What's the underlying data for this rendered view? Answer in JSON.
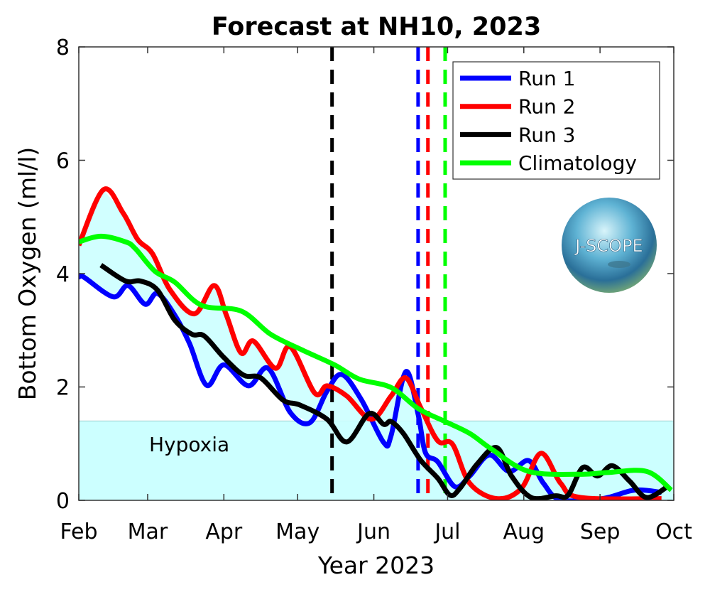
{
  "chart_data": {
    "type": "line",
    "title": "Forecast at NH10, 2023",
    "xlabel": "Year 2023",
    "ylabel": "Bottom Oxygen (ml/l)",
    "xlim": [
      "2023-02-01",
      "2023-10-01"
    ],
    "ylim": [
      0,
      8
    ],
    "x_ticks": [
      {
        "date": "2023-02-01",
        "label": "Feb"
      },
      {
        "date": "2023-03-01",
        "label": "Mar"
      },
      {
        "date": "2023-04-01",
        "label": "Apr"
      },
      {
        "date": "2023-05-01",
        "label": "May"
      },
      {
        "date": "2023-06-01",
        "label": "Jun"
      },
      {
        "date": "2023-07-01",
        "label": "Jul"
      },
      {
        "date": "2023-08-01",
        "label": "Aug"
      },
      {
        "date": "2023-09-01",
        "label": "Sep"
      },
      {
        "date": "2023-10-01",
        "label": "Oct"
      }
    ],
    "y_ticks": [
      0,
      2,
      4,
      6,
      8
    ],
    "grid": false,
    "legend_position": "top-right",
    "hypoxia": {
      "label": "Hypoxia",
      "ymin": 0,
      "ymax": 1.4,
      "color": "#ccffff"
    },
    "envelope_fill_color": "#ccffff",
    "forecast_start": {
      "date": "2023-05-15",
      "color": "#000000"
    },
    "series": [
      {
        "name": "Run 1",
        "color": "#0000ff",
        "hypoxia_onset": "2023-06-19",
        "points": [
          [
            "2023-02-01",
            3.94
          ],
          [
            "2023-02-03",
            3.94
          ],
          [
            "2023-02-15",
            3.59
          ],
          [
            "2023-02-21",
            3.79
          ],
          [
            "2023-02-28",
            3.46
          ],
          [
            "2023-03-05",
            3.65
          ],
          [
            "2023-03-12",
            3.27
          ],
          [
            "2023-03-18",
            2.77
          ],
          [
            "2023-03-25",
            2.03
          ],
          [
            "2023-04-01",
            2.39
          ],
          [
            "2023-04-11",
            2.02
          ],
          [
            "2023-04-19",
            2.33
          ],
          [
            "2023-04-28",
            1.55
          ],
          [
            "2023-05-06",
            1.37
          ],
          [
            "2023-05-13",
            1.93
          ],
          [
            "2023-05-19",
            2.22
          ],
          [
            "2023-05-27",
            1.77
          ],
          [
            "2023-06-05",
            1.02
          ],
          [
            "2023-06-08",
            1.14
          ],
          [
            "2023-06-14",
            2.27
          ],
          [
            "2023-06-19",
            1.52
          ],
          [
            "2023-06-22",
            0.84
          ],
          [
            "2023-06-27",
            0.68
          ],
          [
            "2023-07-04",
            0.24
          ],
          [
            "2023-07-10",
            0.43
          ],
          [
            "2023-07-18",
            0.8
          ],
          [
            "2023-07-26",
            0.51
          ],
          [
            "2023-08-03",
            0.7
          ],
          [
            "2023-08-09",
            0.3
          ],
          [
            "2023-08-16",
            0.01
          ],
          [
            "2023-09-02",
            0.03
          ],
          [
            "2023-09-15",
            0.18
          ],
          [
            "2023-09-26",
            0.14
          ]
        ]
      },
      {
        "name": "Run 2",
        "color": "#ff0000",
        "hypoxia_onset": "2023-06-23",
        "points": [
          [
            "2023-02-01",
            4.5
          ],
          [
            "2023-02-11",
            5.48
          ],
          [
            "2023-02-19",
            5.07
          ],
          [
            "2023-02-25",
            4.6
          ],
          [
            "2023-03-03",
            4.35
          ],
          [
            "2023-03-10",
            3.72
          ],
          [
            "2023-03-20",
            3.29
          ],
          [
            "2023-03-28",
            3.79
          ],
          [
            "2023-04-02",
            3.27
          ],
          [
            "2023-04-08",
            2.6
          ],
          [
            "2023-04-13",
            2.81
          ],
          [
            "2023-04-22",
            2.33
          ],
          [
            "2023-04-28",
            2.71
          ],
          [
            "2023-05-08",
            1.89
          ],
          [
            "2023-05-13",
            2.02
          ],
          [
            "2023-05-21",
            1.84
          ],
          [
            "2023-05-31",
            1.43
          ],
          [
            "2023-06-08",
            1.84
          ],
          [
            "2023-06-14",
            2.16
          ],
          [
            "2023-06-20",
            1.64
          ],
          [
            "2023-06-27",
            1.05
          ],
          [
            "2023-07-03",
            0.99
          ],
          [
            "2023-07-10",
            0.3
          ],
          [
            "2023-07-21",
            0.03
          ],
          [
            "2023-07-31",
            0.21
          ],
          [
            "2023-08-08",
            0.83
          ],
          [
            "2023-08-16",
            0.3
          ],
          [
            "2023-08-24",
            0.05
          ],
          [
            "2023-09-26",
            0.03
          ]
        ]
      },
      {
        "name": "Run 3",
        "color": "#000000",
        "points": [
          [
            "2023-02-10",
            4.15
          ],
          [
            "2023-02-20",
            3.87
          ],
          [
            "2023-02-26",
            3.87
          ],
          [
            "2023-03-05",
            3.71
          ],
          [
            "2023-03-12",
            3.18
          ],
          [
            "2023-03-19",
            2.93
          ],
          [
            "2023-03-24",
            2.9
          ],
          [
            "2023-04-01",
            2.52
          ],
          [
            "2023-04-09",
            2.21
          ],
          [
            "2023-04-16",
            2.16
          ],
          [
            "2023-04-25",
            1.77
          ],
          [
            "2023-05-02",
            1.68
          ],
          [
            "2023-05-13",
            1.43
          ],
          [
            "2023-05-21",
            1.03
          ],
          [
            "2023-05-30",
            1.53
          ],
          [
            "2023-06-05",
            1.34
          ],
          [
            "2023-06-08",
            1.39
          ],
          [
            "2023-06-13",
            1.18
          ],
          [
            "2023-06-20",
            0.71
          ],
          [
            "2023-06-27",
            0.39
          ],
          [
            "2023-07-02",
            0.09
          ],
          [
            "2023-07-06",
            0.21
          ],
          [
            "2023-07-13",
            0.64
          ],
          [
            "2023-07-21",
            0.93
          ],
          [
            "2023-07-27",
            0.43
          ],
          [
            "2023-08-04",
            0.05
          ],
          [
            "2023-08-14",
            0.08
          ],
          [
            "2023-08-19",
            0.09
          ],
          [
            "2023-08-25",
            0.58
          ],
          [
            "2023-08-31",
            0.43
          ],
          [
            "2023-09-06",
            0.61
          ],
          [
            "2023-09-13",
            0.34
          ],
          [
            "2023-09-20",
            0.05
          ],
          [
            "2023-09-29",
            0.26
          ]
        ]
      },
      {
        "name": "Climatology",
        "color": "#00ff00",
        "hypoxia_onset": "2023-06-30",
        "points": [
          [
            "2023-02-01",
            4.56
          ],
          [
            "2023-02-10",
            4.66
          ],
          [
            "2023-02-20",
            4.56
          ],
          [
            "2023-02-24",
            4.44
          ],
          [
            "2023-03-04",
            4.04
          ],
          [
            "2023-03-12",
            3.85
          ],
          [
            "2023-03-23",
            3.44
          ],
          [
            "2023-04-08",
            3.34
          ],
          [
            "2023-04-20",
            2.93
          ],
          [
            "2023-05-03",
            2.65
          ],
          [
            "2023-05-16",
            2.39
          ],
          [
            "2023-05-26",
            2.14
          ],
          [
            "2023-06-08",
            1.99
          ],
          [
            "2023-06-19",
            1.62
          ],
          [
            "2023-06-30",
            1.39
          ],
          [
            "2023-07-10",
            1.18
          ],
          [
            "2023-07-19",
            0.9
          ],
          [
            "2023-08-03",
            0.51
          ],
          [
            "2023-08-24",
            0.46
          ],
          [
            "2023-09-04",
            0.49
          ],
          [
            "2023-09-20",
            0.51
          ],
          [
            "2023-09-30",
            0.18
          ]
        ]
      }
    ]
  },
  "logo": {
    "text": "J-SCOPE"
  }
}
